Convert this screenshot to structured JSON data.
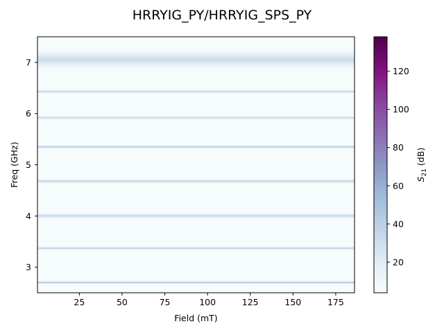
{
  "chart_data": {
    "type": "heatmap",
    "title": "HRRYIG_PY/HRRYIG_SPS_PY",
    "xlabel": "Field (mT)",
    "ylabel": "Freq (GHz)",
    "colorbar_label_main": "S",
    "colorbar_label_sub": "21",
    "colorbar_label_unit": " (dB)",
    "xlim": [
      0.5,
      186
    ],
    "ylim": [
      2.5,
      7.5
    ],
    "x_ticks": [
      25,
      50,
      75,
      100,
      125,
      150,
      175
    ],
    "y_ticks": [
      3,
      4,
      5,
      6,
      7
    ],
    "colorbar_range": [
      4,
      138
    ],
    "colorbar_ticks": [
      20,
      40,
      60,
      80,
      100,
      120
    ],
    "colormap": [
      "#f7fcfd",
      "#e0ecf4",
      "#bfd3e6",
      "#9ebcda",
      "#8c96c6",
      "#8c6bb1",
      "#88419d",
      "#810f7c",
      "#4d004b"
    ],
    "background_level": 5,
    "resonances": [
      {
        "freq": 2.7,
        "peak": 40,
        "width": 0.012
      },
      {
        "freq": 3.37,
        "peak": 32,
        "width": 0.014
      },
      {
        "freq": 4.0,
        "peak": 30,
        "width": 0.02
      },
      {
        "freq": 4.68,
        "peak": 30,
        "width": 0.018
      },
      {
        "freq": 5.35,
        "peak": 34,
        "width": 0.014
      },
      {
        "freq": 5.92,
        "peak": 28,
        "width": 0.014
      },
      {
        "freq": 6.43,
        "peak": 30,
        "width": 0.014
      },
      {
        "freq": 7.05,
        "peak": 26,
        "width": 0.08
      }
    ]
  }
}
